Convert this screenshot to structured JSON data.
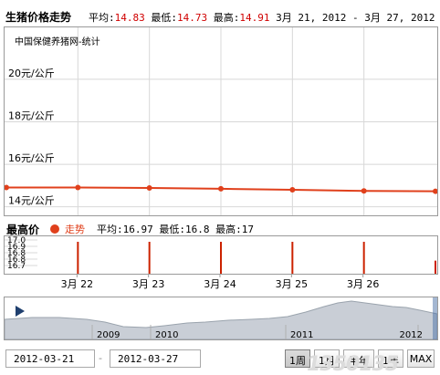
{
  "header": {
    "title": "生猪价格走势",
    "avg_label": "平均:",
    "avg_value": "14.83",
    "min_label": "最低:",
    "min_value": "14.73",
    "max_label": "最高:",
    "max_value": "14.91",
    "date_range": "3月 21, 2012 - 3月 27, 2012"
  },
  "main_chart": {
    "subtitle": "中国保健养猪网-统计"
  },
  "legend": {
    "high_label": "最高价",
    "series_label": "走势",
    "avg_label": "平均:",
    "avg_value": "16.97",
    "min_label": "最低:",
    "min_value": "16.8",
    "max_label": "最高:",
    "max_value": "17"
  },
  "navigator": {
    "year_labels": [
      "2009",
      "2010",
      "2011",
      "2012"
    ]
  },
  "controls": {
    "start_date": "2012-03-21",
    "separator": "-",
    "end_date": "2012-03-27",
    "range_buttons": [
      "1周",
      "1月",
      "半年",
      "1年",
      "MAX"
    ],
    "active_range": "1周"
  },
  "watermark": "1350135",
  "colors": {
    "line": "#e0401c",
    "grid": "#d8d8d8",
    "bar": "#cc2200",
    "navigator_fill": "#c9ced6"
  },
  "chart_data": [
    {
      "type": "line",
      "series": [
        {
          "name": "走势",
          "x": [
            "2012-03-21",
            "2012-03-22",
            "2012-03-23",
            "2012-03-24",
            "2012-03-25",
            "2012-03-26",
            "2012-03-27"
          ],
          "values": [
            14.91,
            14.91,
            14.89,
            14.85,
            14.8,
            14.75,
            14.73
          ]
        }
      ],
      "ytick_labels": [
        "20元/公斤",
        "18元/公斤",
        "16元/公斤",
        "14元/公斤"
      ],
      "yticks": [
        20,
        18,
        16,
        14
      ],
      "ylim": [
        13.6,
        21.5
      ],
      "xlim": [
        "2012-03-21",
        "2012-03-27"
      ],
      "grid": true
    },
    {
      "type": "bar",
      "categories": [
        "2012-03-22",
        "2012-03-23",
        "2012-03-24",
        "2012-03-25",
        "2012-03-26",
        "2012-03-27"
      ],
      "values": [
        17,
        17,
        17,
        17,
        17,
        16.8
      ],
      "ytick_labels": [
        "17.0",
        "16.9",
        "16.8",
        "16.8",
        "16.7"
      ],
      "ylim": [
        16.7,
        17.0
      ]
    }
  ],
  "xaxis": {
    "labels": [
      "3月 22",
      "3月 23",
      "3月 24",
      "3月 25",
      "3月 26"
    ]
  }
}
